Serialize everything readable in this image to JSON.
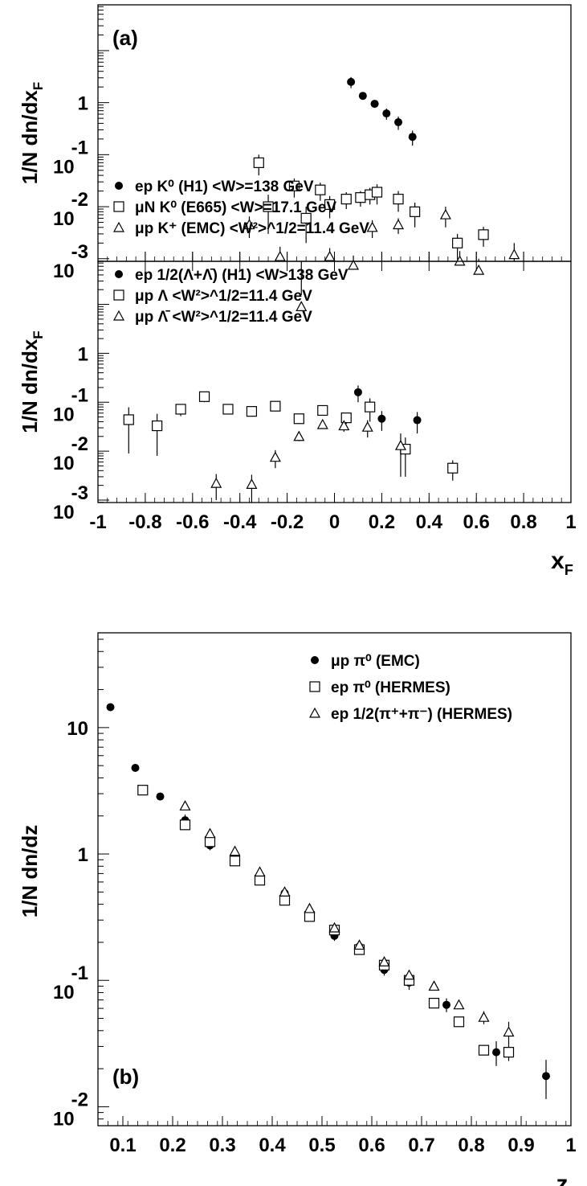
{
  "chart_data": [
    {
      "type": "scatter",
      "panel_label": "(a)",
      "ylabel": "1/N dn/dx",
      "ylabel_sub": "F",
      "yscale": "log",
      "xlim": [
        -1,
        1
      ],
      "ylim_log10": [
        -3,
        1
      ],
      "y_tick_labels": [
        {
          "base": "1",
          "exp": ""
        },
        {
          "base": "10",
          "exp": "-1"
        },
        {
          "base": "10",
          "exp": "-2"
        },
        {
          "base": "10",
          "exp": "-3"
        }
      ],
      "legend_position": "bottom-left",
      "series": [
        {
          "name": "ep K⁰ (H1) <W>=138 GeV",
          "marker": "circle-filled",
          "x": [
            0.07,
            0.12,
            0.17,
            0.22,
            0.27,
            0.33
          ],
          "y": [
            2.5,
            1.35,
            0.95,
            0.62,
            0.42,
            0.22
          ],
          "err": [
            0.6,
            0.1,
            0.15,
            0.15,
            0.12,
            0.07
          ]
        },
        {
          "name": "μN K⁰ (E665) <W>=17.1 GeV",
          "marker": "square-open",
          "x": [
            -0.32,
            -0.28,
            -0.17,
            -0.12,
            -0.06,
            -0.02,
            0.05,
            0.11,
            0.15,
            0.18,
            0.27,
            0.34,
            0.52,
            0.63
          ],
          "y": [
            0.07,
            0.01,
            0.025,
            0.006,
            0.021,
            0.011,
            0.014,
            0.015,
            0.017,
            0.019,
            0.014,
            0.008,
            0.002,
            0.0029
          ],
          "err": [
            0.03,
            0.007,
            0.01,
            0.004,
            0.008,
            0.005,
            0.005,
            0.005,
            0.006,
            0.008,
            0.006,
            0.004,
            0.001,
            0.0012
          ]
        },
        {
          "name": "μp K⁺ (EMC) <W²>^1/2=11.4 GeV",
          "marker": "triangle-open",
          "x": [
            -0.36,
            -0.23,
            -0.14,
            -0.02,
            0.08,
            0.16,
            0.27,
            0.47,
            0.53,
            0.61,
            0.76
          ],
          "y": [
            0.0045,
            0.0011,
            0.00012,
            0.0011,
            0.00075,
            0.004,
            0.0045,
            0.007,
            0.0009,
            0.0006,
            0.0012
          ],
          "err": [
            0.002,
            0.0006,
            8e-05,
            0.0005,
            0.0004,
            0.0015,
            0.0015,
            0.003,
            0.0005,
            0.0004,
            0.0008
          ]
        }
      ]
    },
    {
      "type": "scatter",
      "ylabel": "1/N dn/dx",
      "ylabel_sub": "F",
      "xlabel": "x",
      "xlabel_sub": "F",
      "yscale": "log",
      "xlim": [
        -1,
        1
      ],
      "ylim_log10": [
        -3,
        1
      ],
      "x_ticks": [
        -1,
        -0.8,
        -0.6,
        -0.4,
        -0.2,
        0,
        0.2,
        0.4,
        0.6,
        0.8,
        1
      ],
      "x_tick_labels": [
        "-1",
        "-0.8",
        "-0.6",
        "-0.4",
        "-0.2",
        "0",
        "0.2",
        "0.4",
        "0.6",
        "0.8",
        "1"
      ],
      "y_tick_labels": [
        {
          "base": "1",
          "exp": ""
        },
        {
          "base": "10",
          "exp": "-1"
        },
        {
          "base": "10",
          "exp": "-2"
        },
        {
          "base": "10",
          "exp": "-3"
        }
      ],
      "legend_position": "top-left",
      "series": [
        {
          "name": "ep 1/2(Λ+Λ̄) (H1) <W>138 GeV",
          "marker": "circle-filled",
          "x": [
            0.1,
            0.2,
            0.35
          ],
          "y": [
            0.16,
            0.046,
            0.043
          ],
          "err": [
            0.06,
            0.02,
            0.02
          ]
        },
        {
          "name": "μp Λ <W²>^1/2=11.4 GeV",
          "marker": "square-open",
          "x": [
            -0.87,
            -0.75,
            -0.65,
            -0.55,
            -0.45,
            -0.35,
            -0.25,
            -0.15,
            -0.05,
            0.05,
            0.15,
            0.3,
            0.5
          ],
          "y": [
            0.044,
            0.033,
            0.072,
            0.13,
            0.072,
            0.065,
            0.083,
            0.046,
            0.068,
            0.048,
            0.08,
            0.011,
            0.0045
          ],
          "err": [
            0.035,
            0.025,
            0.02,
            0.03,
            0.015,
            0.012,
            0.015,
            0.01,
            0.012,
            0.012,
            0.04,
            0.008,
            0.002
          ]
        },
        {
          "name": "μp Λ̄ <W²>^1/2=11.4 GeV",
          "marker": "triangle-open",
          "x": [
            -0.5,
            -0.35,
            -0.25,
            -0.15,
            -0.05,
            0.04,
            0.14,
            0.28
          ],
          "y": [
            0.0022,
            0.0021,
            0.0075,
            0.02,
            0.035,
            0.033,
            0.031,
            0.013
          ],
          "err": [
            0.0012,
            0.0012,
            0.003,
            0.004,
            0.006,
            0.008,
            0.012,
            0.01
          ]
        }
      ]
    },
    {
      "type": "scatter",
      "panel_label": "(b)",
      "ylabel": "1/N dn/dz",
      "xlabel": "z",
      "yscale": "log",
      "xlim": [
        0.05,
        1
      ],
      "ylim_log10": [
        -2,
        1.7
      ],
      "x_ticks": [
        0.1,
        0.2,
        0.3,
        0.4,
        0.5,
        0.6,
        0.7,
        0.8,
        0.9,
        1
      ],
      "x_tick_labels": [
        "0.1",
        "0.2",
        "0.3",
        "0.4",
        "0.5",
        "0.6",
        "0.7",
        "0.8",
        "0.9",
        "1"
      ],
      "y_tick_labels": [
        {
          "base": "10",
          "exp": ""
        },
        {
          "base": "1",
          "exp": ""
        },
        {
          "base": "10",
          "exp": "-1"
        },
        {
          "base": "10",
          "exp": "-2"
        }
      ],
      "legend_position": "top-right",
      "series": [
        {
          "name": "μp π⁰ (EMC)",
          "marker": "circle-filled",
          "x": [
            0.075,
            0.125,
            0.175,
            0.225,
            0.275,
            0.325,
            0.375,
            0.425,
            0.475,
            0.525,
            0.575,
            0.625,
            0.675,
            0.75,
            0.85,
            0.95
          ],
          "y": [
            14.5,
            4.8,
            2.85,
            1.85,
            1.17,
            0.91,
            0.63,
            0.49,
            0.35,
            0.225,
            0.185,
            0.121,
            0.096,
            0.064,
            0.027,
            0.0175
          ],
          "err": [
            0,
            0,
            0,
            0.2,
            0.1,
            0.08,
            0.05,
            0.04,
            0.03,
            0.02,
            0.015,
            0.012,
            0.012,
            0.008,
            0.006,
            0.006
          ]
        },
        {
          "name": "ep π⁰ (HERMES)",
          "marker": "square-open",
          "x": [
            0.14,
            0.225,
            0.275,
            0.325,
            0.375,
            0.425,
            0.475,
            0.525,
            0.575,
            0.625,
            0.675,
            0.725,
            0.775,
            0.825,
            0.875
          ],
          "y": [
            3.2,
            1.7,
            1.25,
            0.88,
            0.62,
            0.43,
            0.32,
            0.25,
            0.175,
            0.132,
            0.1,
            0.066,
            0.047,
            0.028,
            0.027
          ],
          "err": [
            0,
            0,
            0,
            0,
            0,
            0,
            0,
            0,
            0,
            0,
            0,
            0,
            0,
            0,
            0.004
          ]
        },
        {
          "name": "ep 1/2(π⁺+π⁻) (HERMES)",
          "marker": "triangle-open",
          "x": [
            0.225,
            0.275,
            0.325,
            0.375,
            0.425,
            0.475,
            0.525,
            0.575,
            0.625,
            0.675,
            0.725,
            0.775,
            0.825,
            0.875
          ],
          "y": [
            2.4,
            1.45,
            1.05,
            0.72,
            0.5,
            0.37,
            0.26,
            0.19,
            0.14,
            0.11,
            0.09,
            0.064,
            0.051,
            0.039
          ],
          "err": [
            0,
            0,
            0,
            0,
            0,
            0,
            0,
            0,
            0,
            0,
            0,
            0,
            0.006,
            0.008
          ]
        }
      ]
    }
  ]
}
